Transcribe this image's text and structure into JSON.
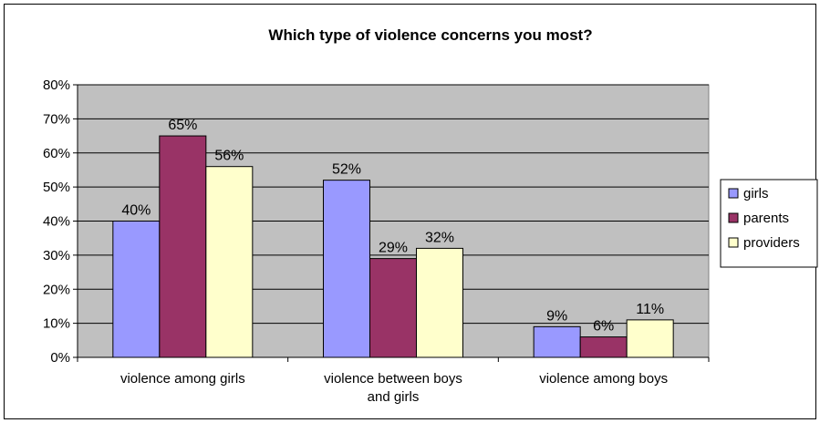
{
  "chart_data": {
    "type": "bar",
    "title": "Which type of violence concerns you most?",
    "categories": [
      [
        "violence among girls"
      ],
      [
        "violence between boys",
        "and girls"
      ],
      [
        "violence among boys"
      ]
    ],
    "series": [
      {
        "name": "girls",
        "color": "#9999ff",
        "values": [
          40,
          52,
          9
        ]
      },
      {
        "name": "parents",
        "color": "#993366",
        "values": [
          65,
          29,
          6
        ]
      },
      {
        "name": "providers",
        "color": "#ffffcc",
        "values": [
          56,
          32,
          11
        ]
      }
    ],
    "ylim": [
      0,
      80
    ],
    "yticks": [
      0,
      10,
      20,
      30,
      40,
      50,
      60,
      70,
      80
    ],
    "ytick_labels": [
      "0%",
      "10%",
      "20%",
      "30%",
      "40%",
      "50%",
      "60%",
      "70%",
      "80%"
    ],
    "data_labels": [
      [
        "40%",
        "52%",
        "9%"
      ],
      [
        "65%",
        "29%",
        "6%"
      ],
      [
        "56%",
        "32%",
        "11%"
      ]
    ],
    "grid": true,
    "plot_background": "#c0c0c0",
    "legend_position": "right"
  }
}
